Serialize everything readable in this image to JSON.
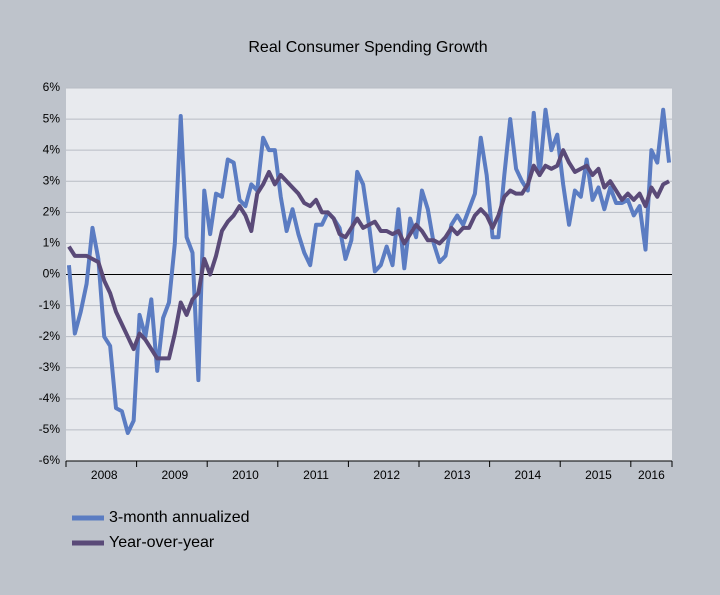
{
  "chart_data": {
    "type": "line",
    "title": "Real Consumer Spending Growth",
    "categories": [
      null,
      null,
      null,
      null,
      null,
      null,
      "2008",
      null,
      null,
      null,
      null,
      null,
      null,
      null,
      null,
      null,
      null,
      null,
      "2009",
      null,
      null,
      null,
      null,
      null,
      null,
      null,
      null,
      null,
      null,
      null,
      "2010",
      null,
      null,
      null,
      null,
      null,
      null,
      null,
      null,
      null,
      null,
      null,
      "2011",
      null,
      null,
      null,
      null,
      null,
      null,
      null,
      null,
      null,
      null,
      null,
      "2012",
      null,
      null,
      null,
      null,
      null,
      null,
      null,
      null,
      null,
      null,
      null,
      "2013",
      null,
      null,
      null,
      null,
      null,
      null,
      null,
      null,
      null,
      null,
      null,
      "2014",
      null,
      null,
      null,
      null,
      null,
      null,
      null,
      null,
      null,
      null,
      null,
      "2015",
      null,
      null,
      null,
      null,
      null,
      null,
      null,
      null,
      "2016",
      null,
      null,
      null
    ],
    "series": [
      {
        "name": "3-month annualized",
        "color": "#5b7cc2",
        "values": [
          0.3,
          -1.9,
          -1.2,
          -0.3,
          1.5,
          0.5,
          -2.0,
          -2.3,
          -4.3,
          -4.4,
          -5.1,
          -4.7,
          -1.3,
          -2.0,
          -0.8,
          -3.1,
          -1.4,
          -0.9,
          1.0,
          5.1,
          1.2,
          0.7,
          -3.4,
          2.7,
          1.3,
          2.6,
          2.5,
          3.7,
          3.6,
          2.4,
          2.2,
          2.9,
          2.7,
          4.4,
          4.0,
          4.0,
          2.5,
          1.4,
          2.1,
          1.3,
          0.7,
          0.3,
          1.6,
          1.6,
          2.0,
          1.8,
          1.5,
          0.5,
          1.1,
          3.3,
          2.9,
          1.6,
          0.1,
          0.3,
          0.9,
          0.3,
          2.1,
          0.2,
          1.8,
          1.2,
          2.7,
          2.1,
          1.0,
          0.4,
          0.6,
          1.6,
          1.9,
          1.6,
          2.1,
          2.6,
          4.4,
          3.2,
          1.2,
          1.2,
          3.2,
          5.0,
          3.4,
          3.0,
          2.7,
          5.2,
          3.2,
          5.3,
          4.0,
          4.5,
          2.9,
          1.6,
          2.7,
          2.5,
          3.7,
          2.4,
          2.8,
          2.1,
          2.8,
          2.3,
          2.3,
          2.4,
          1.9,
          2.2,
          0.8,
          4.0,
          3.6,
          5.3,
          3.6
        ]
      },
      {
        "name": "Year-over-year",
        "color": "#5a4a78",
        "values": [
          0.9,
          0.6,
          0.6,
          0.6,
          0.5,
          0.4,
          -0.2,
          -0.6,
          -1.2,
          -1.6,
          -2.0,
          -2.4,
          -1.9,
          -2.1,
          -2.4,
          -2.7,
          -2.7,
          -2.7,
          -1.9,
          -0.9,
          -1.3,
          -0.8,
          -0.6,
          0.5,
          0.0,
          0.6,
          1.4,
          1.7,
          1.9,
          2.2,
          1.9,
          1.4,
          2.6,
          2.9,
          3.3,
          2.9,
          3.2,
          3.0,
          2.8,
          2.6,
          2.3,
          2.2,
          2.4,
          2.0,
          2.0,
          1.8,
          1.3,
          1.2,
          1.5,
          1.8,
          1.5,
          1.6,
          1.7,
          1.4,
          1.4,
          1.3,
          1.4,
          1.0,
          1.3,
          1.6,
          1.4,
          1.1,
          1.1,
          1.0,
          1.2,
          1.5,
          1.3,
          1.5,
          1.5,
          1.9,
          2.1,
          1.9,
          1.5,
          1.9,
          2.5,
          2.7,
          2.6,
          2.6,
          2.9,
          3.5,
          3.2,
          3.5,
          3.4,
          3.5,
          4.0,
          3.6,
          3.3,
          3.4,
          3.5,
          3.2,
          3.4,
          2.8,
          3.0,
          2.7,
          2.4,
          2.6,
          2.4,
          2.6,
          2.2,
          2.8,
          2.5,
          2.9,
          3.0
        ]
      }
    ],
    "ylim": [
      -6,
      6
    ],
    "yticks": [
      {
        "value": -6,
        "label": "-6%"
      },
      {
        "value": -5,
        "label": "-5%"
      },
      {
        "value": -4,
        "label": "-4%"
      },
      {
        "value": -3,
        "label": "-3%"
      },
      {
        "value": -2,
        "label": "-2%"
      },
      {
        "value": -1,
        "label": "-1%"
      },
      {
        "value": 0,
        "label": "0%"
      },
      {
        "value": 1,
        "label": "1%"
      },
      {
        "value": 2,
        "label": "2%"
      },
      {
        "value": 3,
        "label": "3%"
      },
      {
        "value": 4,
        "label": "4%"
      },
      {
        "value": 5,
        "label": "5%"
      },
      {
        "value": 6,
        "label": "6%"
      }
    ],
    "grid": true,
    "legend": "bottom"
  }
}
